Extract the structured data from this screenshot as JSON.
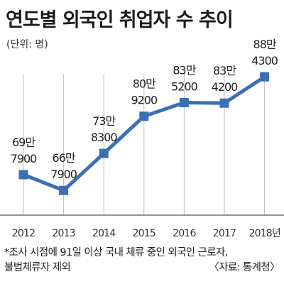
{
  "chart_data": {
    "type": "line",
    "title": "연도별 외국인 취업자 수 추이",
    "unit_label": "(단위: 명)",
    "categories": [
      "2012",
      "2013",
      "2014",
      "2015",
      "2016",
      "2017",
      "2018년"
    ],
    "values": [
      697900,
      667900,
      738300,
      809200,
      835200,
      834200,
      884300
    ],
    "data_labels": [
      [
        "69만",
        "7900"
      ],
      [
        "66만",
        "7900"
      ],
      [
        "73만",
        "8300"
      ],
      [
        "80만",
        "9200"
      ],
      [
        "83만",
        "5200"
      ],
      [
        "83만",
        "4200"
      ],
      [
        "88만",
        "4300"
      ]
    ],
    "xlabel": "",
    "ylabel": "",
    "grid": "vertical",
    "line_color": "#3a6fb5",
    "marker_color": "#3a6fb5",
    "grid_color": "#bfbfbf"
  },
  "footnote": {
    "line1": "*조사 시점에 91일 이상 국내 체류 중인 외국인 근로자,",
    "line2": "불법체류자 제외"
  },
  "source": "〈자료: 통계청〉"
}
